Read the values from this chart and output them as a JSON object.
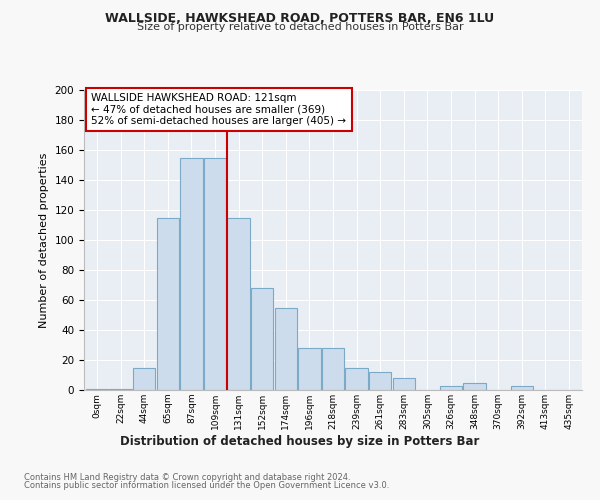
{
  "title1": "WALLSIDE, HAWKSHEAD ROAD, POTTERS BAR, EN6 1LU",
  "title2": "Size of property relative to detached houses in Potters Bar",
  "xlabel": "Distribution of detached houses by size in Potters Bar",
  "ylabel": "Number of detached properties",
  "bin_labels": [
    "0sqm",
    "22sqm",
    "44sqm",
    "65sqm",
    "87sqm",
    "109sqm",
    "131sqm",
    "152sqm",
    "174sqm",
    "196sqm",
    "218sqm",
    "239sqm",
    "261sqm",
    "283sqm",
    "305sqm",
    "326sqm",
    "348sqm",
    "370sqm",
    "392sqm",
    "413sqm",
    "435sqm"
  ],
  "bar_heights": [
    1,
    1,
    15,
    115,
    155,
    155,
    115,
    68,
    55,
    28,
    28,
    15,
    12,
    8,
    0,
    3,
    5,
    0,
    3,
    0,
    0
  ],
  "bar_color": "#ccdcec",
  "bar_edge_color": "#7aaac8",
  "vline_x": 6,
  "property_line_label": "WALLSIDE HAWKSHEAD ROAD: 121sqm",
  "annotation_line1": "← 47% of detached houses are smaller (369)",
  "annotation_line2": "52% of semi-detached houses are larger (405) →",
  "annotation_box_color": "#ffffff",
  "annotation_box_edge": "#cc0000",
  "vline_color": "#cc0000",
  "ylim": [
    0,
    200
  ],
  "yticks": [
    0,
    20,
    40,
    60,
    80,
    100,
    120,
    140,
    160,
    180,
    200
  ],
  "footer1": "Contains HM Land Registry data © Crown copyright and database right 2024.",
  "footer2": "Contains public sector information licensed under the Open Government Licence v3.0.",
  "fig_bg_color": "#f8f8f8",
  "plot_bg_color": "#e8eef4",
  "grid_color": "#ffffff"
}
